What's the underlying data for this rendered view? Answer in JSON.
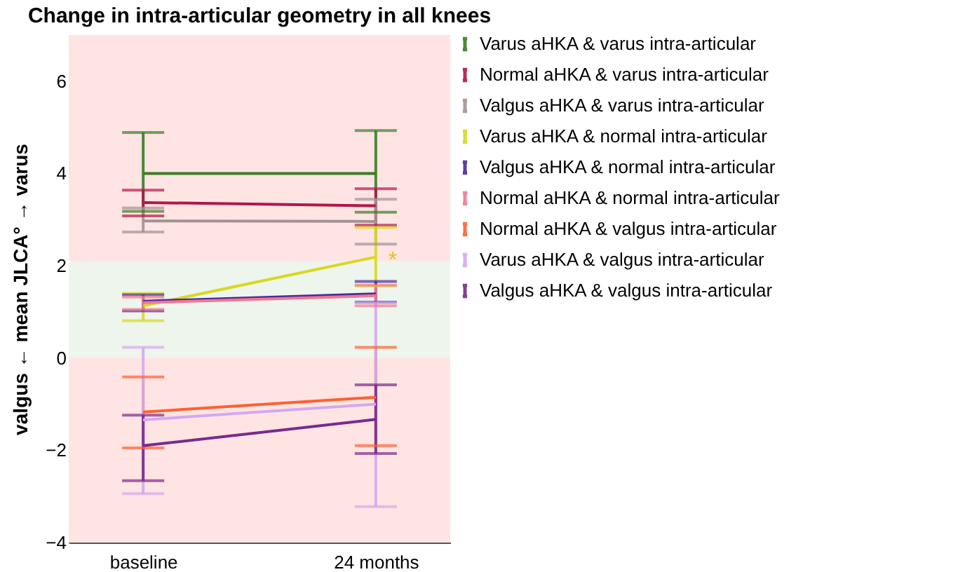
{
  "chart_data": {
    "type": "line",
    "title": "Change in intra-articular geometry in all knees",
    "ylabel": "valgus ← mean JLCA° → varus",
    "categories": [
      "baseline",
      "24 months"
    ],
    "ylim": [
      -4,
      7
    ],
    "yticks": [
      -4,
      -2,
      0,
      2,
      4,
      6
    ],
    "grid": false,
    "legend": "right",
    "marker": "none",
    "line_style": "solid",
    "bands": [
      {
        "axis": "y",
        "from": -4,
        "to": 7,
        "color": "#ffe4e4"
      },
      {
        "axis": "y",
        "from": 0,
        "to": 2.1,
        "color": "#eef5ec"
      }
    ],
    "annotations": [
      {
        "text": "*",
        "x": "24 months",
        "y": 2.19
      }
    ],
    "series": [
      {
        "name": "Varus aHKA & varus intra-articular",
        "color": "#3a7d22",
        "values": [
          4.0,
          4.0
        ],
        "errors": [
          [
            3.18,
            4.89
          ],
          [
            3.16,
            4.93
          ]
        ]
      },
      {
        "name": "Normal aHKA & varus intra-articular",
        "color": "#b0174a",
        "values": [
          3.37,
          3.3
        ],
        "errors": [
          [
            3.08,
            3.64
          ],
          [
            2.88,
            3.67
          ]
        ]
      },
      {
        "name": "Valgus aHKA & varus intra-articular",
        "color": "#a39292",
        "values": [
          2.97,
          2.96
        ],
        "errors": [
          [
            2.73,
            3.25
          ],
          [
            2.47,
            3.44
          ]
        ]
      },
      {
        "name": "Varus aHKA & normal intra-articular",
        "color": "#d8d820",
        "values": [
          1.13,
          2.19
        ],
        "errors": [
          [
            0.81,
            1.4
          ],
          [
            1.56,
            2.83
          ]
        ]
      },
      {
        "name": "Valgus aHKA & normal intra-articular",
        "color": "#4b2a9a",
        "values": [
          1.23,
          1.39
        ],
        "errors": [
          [
            1.02,
            1.37
          ],
          [
            1.21,
            1.66
          ]
        ]
      },
      {
        "name": "Normal aHKA & normal intra-articular",
        "color": "#f07894",
        "values": [
          1.2,
          1.35
        ],
        "errors": [
          [
            1.05,
            1.32
          ],
          [
            1.13,
            1.58
          ]
        ]
      },
      {
        "name": "Normal aHKA & valgus intra-articular",
        "color": "#ff6030",
        "values": [
          -1.17,
          -0.85
        ],
        "errors": [
          [
            -1.95,
            -0.41
          ],
          [
            -1.9,
            0.23
          ]
        ]
      },
      {
        "name": "Varus aHKA & valgus intra-articular",
        "color": "#d4a8f0",
        "values": [
          -1.34,
          -1.0
        ],
        "errors": [
          [
            -2.94,
            0.23
          ],
          [
            -3.22,
            1.2
          ]
        ]
      },
      {
        "name": "Valgus aHKA & valgus intra-articular",
        "color": "#7a2a8a",
        "values": [
          -1.9,
          -1.33
        ],
        "errors": [
          [
            -2.66,
            -1.24
          ],
          [
            -2.07,
            -0.58
          ]
        ]
      }
    ]
  }
}
